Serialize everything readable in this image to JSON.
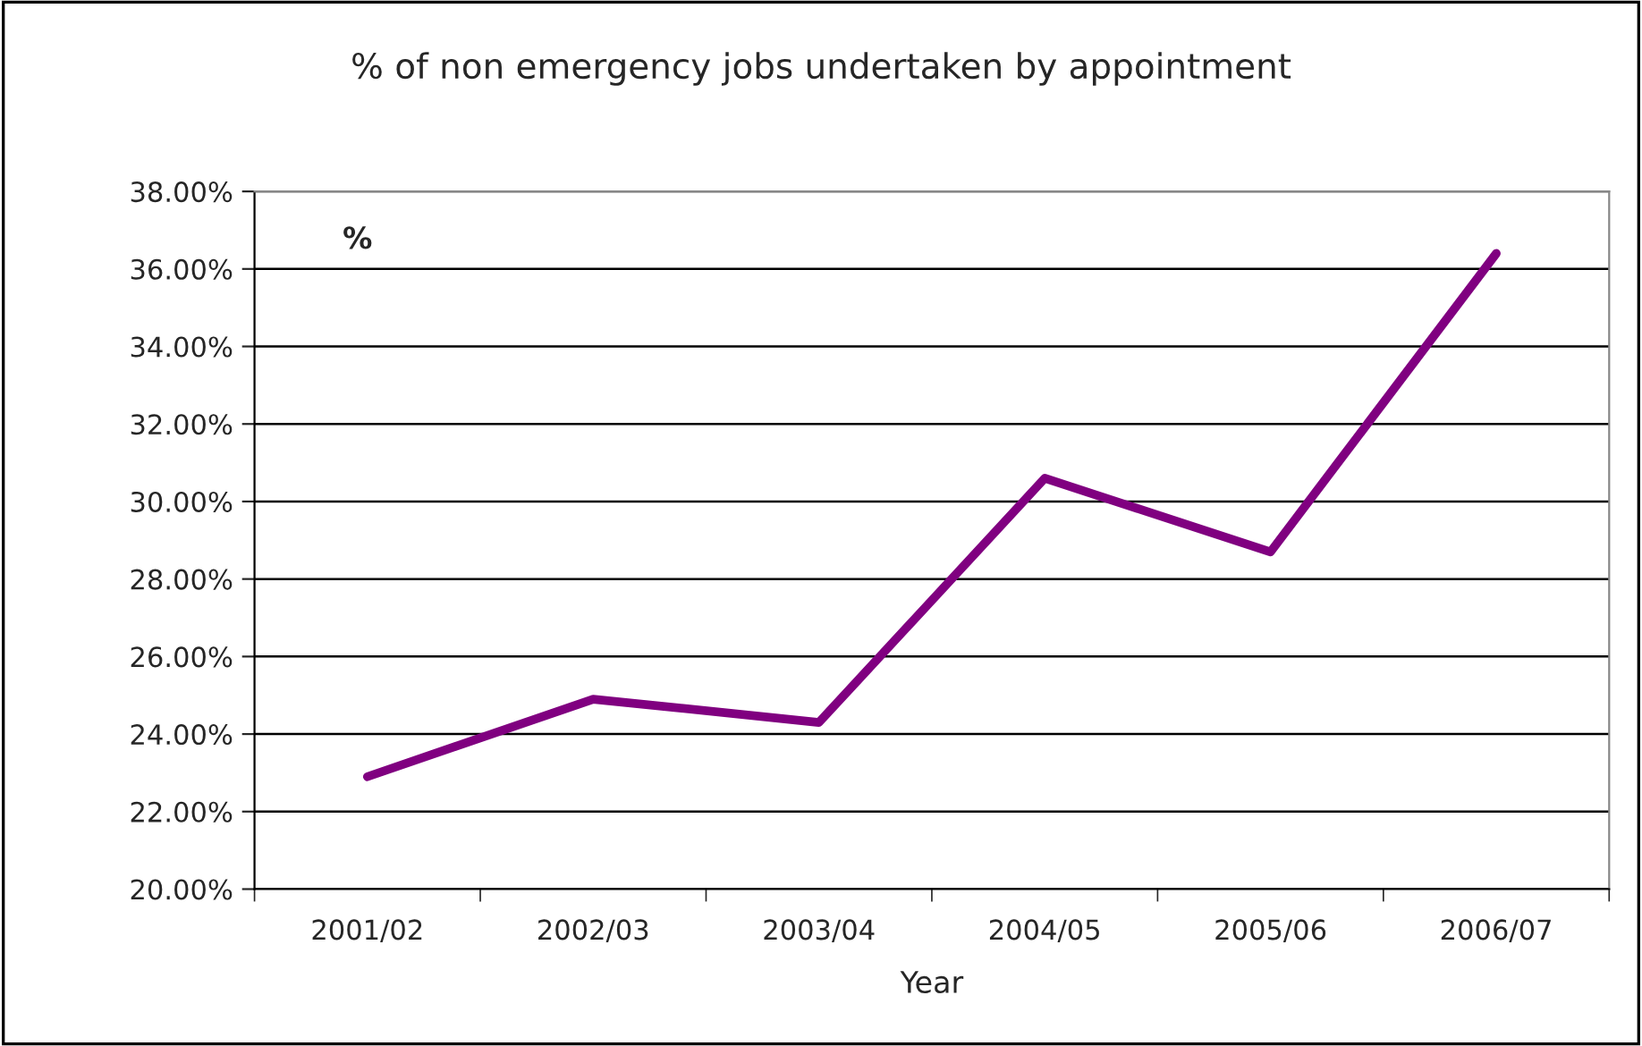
{
  "chart_data": {
    "type": "line",
    "title": "% of non emergency jobs undertaken by appointment",
    "xlabel": "Year",
    "categories": [
      "2001/02",
      "2002/03",
      "2003/04",
      "2004/05",
      "2005/06",
      "2006/07"
    ],
    "series": [
      {
        "color": "#800080",
        "values": [
          22.9,
          24.9,
          24.3,
          30.6,
          28.7,
          36.4
        ]
      }
    ],
    "ylim": [
      20,
      38
    ],
    "yticks": [
      {
        "value": 20,
        "label": "20.00%"
      },
      {
        "value": 22,
        "label": "22.00%"
      },
      {
        "value": 24,
        "label": "24.00%"
      },
      {
        "value": 26,
        "label": "26.00%"
      },
      {
        "value": 28,
        "label": "28.00%"
      },
      {
        "value": 30,
        "label": "30.00%"
      },
      {
        "value": 32,
        "label": "32.00%"
      },
      {
        "value": 34,
        "label": "34.00%"
      },
      {
        "value": 36,
        "label": "36.00%"
      },
      {
        "value": 38,
        "label": "38.00%"
      }
    ],
    "annotations": [
      "%"
    ],
    "grid": "y",
    "legend": false,
    "marker": "none",
    "line_style": "solid"
  }
}
